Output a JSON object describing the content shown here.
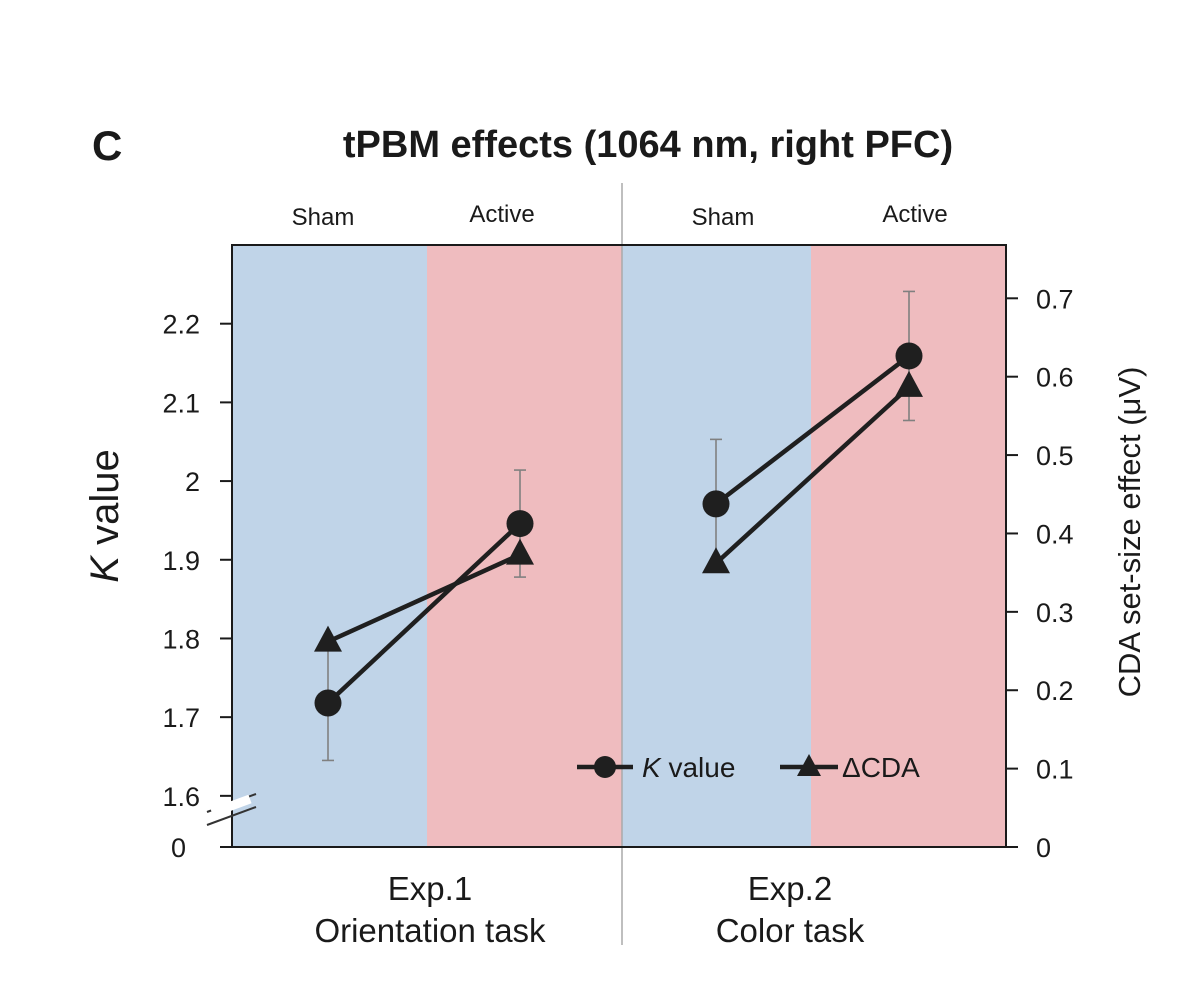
{
  "panel_label": "C",
  "colors": {
    "sham_bg": "#c0d4e8",
    "active_bg": "#efbcbf",
    "line": "#1f1f1f",
    "error_bar": "#808080",
    "divider": "#aaaaaa"
  },
  "chart_data": {
    "type": "line",
    "title": "tPBM effects (1064 nm, right PFC)",
    "ylabel_left_italic": "K",
    "ylabel_left_rest": " value",
    "ylabel_right": "CDA set-size effect (μV)",
    "left_axis": {
      "ticks": [
        1.6,
        1.7,
        1.8,
        1.9,
        2.0,
        2.1,
        2.2
      ],
      "tick_labels": [
        "1.6",
        "1.7",
        "1.8",
        "1.9",
        "2",
        "2.1",
        "2.2"
      ],
      "break_label": "0",
      "range": [
        1.535,
        2.3
      ]
    },
    "right_axis": {
      "ticks": [
        0,
        0.1,
        0.2,
        0.3,
        0.4,
        0.5,
        0.6,
        0.7
      ],
      "tick_labels": [
        "0",
        "0.1",
        "0.2",
        "0.3",
        "0.4",
        "0.5",
        "0.6",
        "0.7"
      ],
      "range": [
        0,
        0.768
      ]
    },
    "condition_labels": [
      "Sham",
      "Active",
      "Sham",
      "Active"
    ],
    "groups": [
      {
        "line1": "Exp.1",
        "line2": "Orientation task"
      },
      {
        "line1": "Exp.2",
        "line2": "Color task"
      }
    ],
    "series": [
      {
        "name_italic": "K",
        "name_rest": " value",
        "axis": "left",
        "marker": "circle",
        "experiments": [
          {
            "values": [
              1.718,
              1.946
            ],
            "errors": [
              0.073,
              0.068
            ]
          },
          {
            "values": [
              1.971,
              2.159
            ],
            "errors": [
              0.082,
              0.082
            ]
          }
        ]
      },
      {
        "name": "ΔCDA",
        "axis": "right",
        "marker": "triangle",
        "experiments": [
          {
            "values": [
              0.262,
              0.373
            ],
            "errors": [
              0.0,
              0.0
            ]
          },
          {
            "values": [
              0.362,
              0.587
            ],
            "errors": [
              0.0,
              0.0
            ]
          }
        ]
      }
    ],
    "legend_position": "bottom-right"
  }
}
